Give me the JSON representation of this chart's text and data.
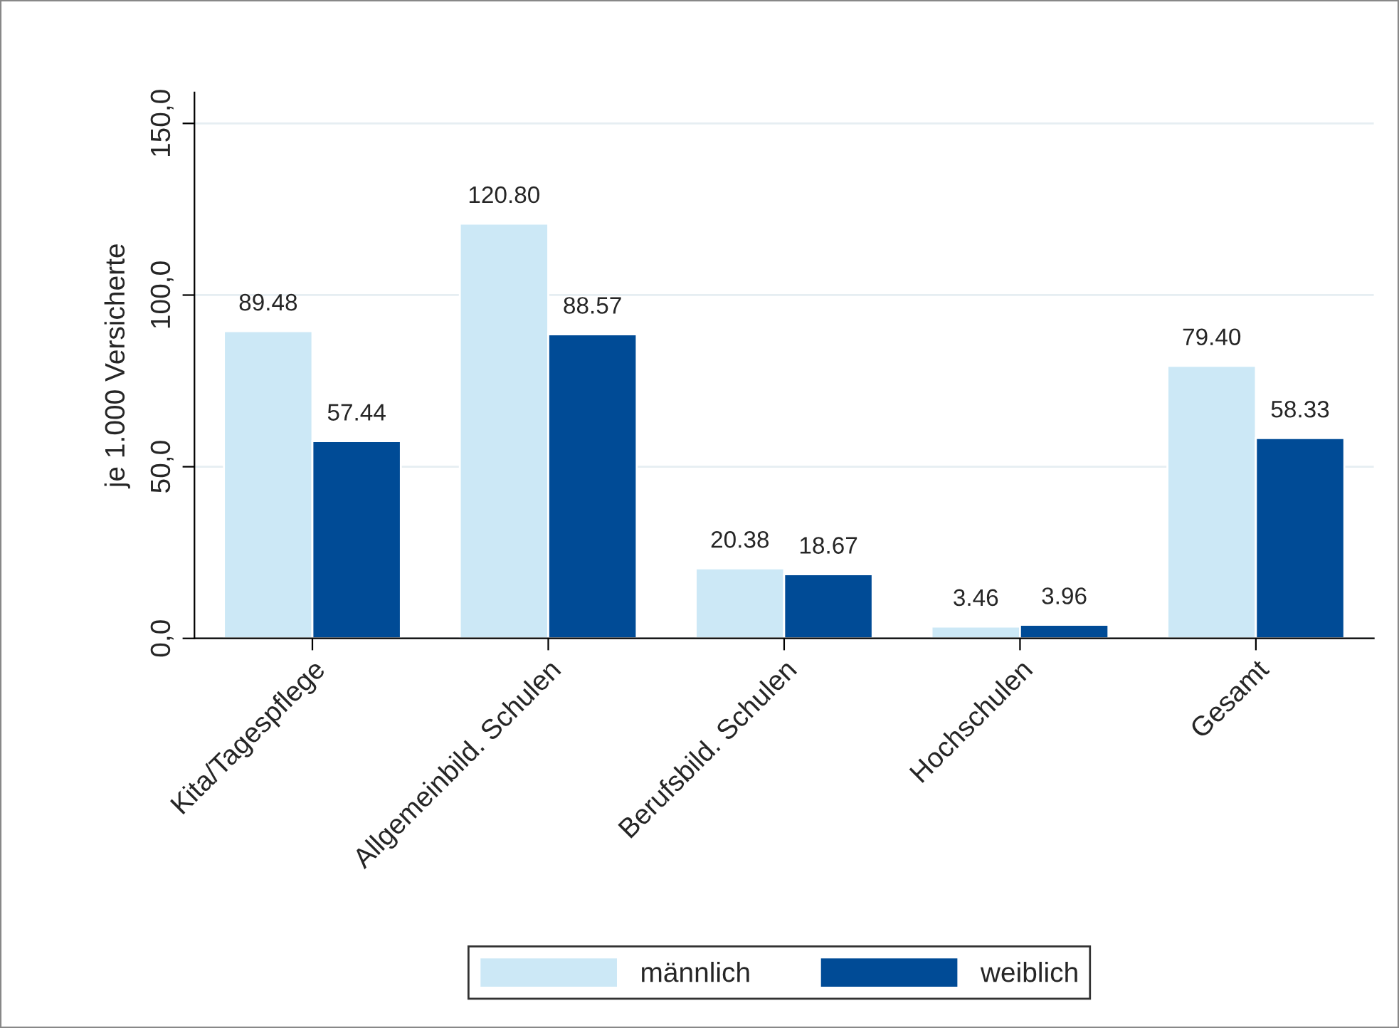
{
  "chart_data": {
    "type": "bar",
    "ylabel": "je 1.000 Versicherte",
    "categories": [
      "Kita/Tagespflege",
      "Allgemeinbild. Schulen",
      "Berufsbild. Schulen",
      "Hochschulen",
      "Gesamt"
    ],
    "series": [
      {
        "name": "männlich",
        "color": "#cce8f6",
        "values": [
          89.48,
          120.8,
          20.38,
          3.46,
          79.4
        ],
        "value_labels": [
          "89.48",
          "120.80",
          "20.38",
          "3.46",
          "79.40"
        ]
      },
      {
        "name": "weiblich",
        "color": "#004b96",
        "values": [
          57.44,
          88.57,
          18.67,
          3.96,
          58.33
        ],
        "value_labels": [
          "57.44",
          "88.57",
          "18.67",
          "3.96",
          "58.33"
        ]
      }
    ],
    "ylim": [
      0,
      159
    ],
    "yticks": [
      {
        "value": 0,
        "label": "0,0"
      },
      {
        "value": 50,
        "label": "50,0"
      },
      {
        "value": 100,
        "label": "100,0"
      },
      {
        "value": 150,
        "label": "150,0"
      }
    ],
    "grid": "y",
    "legend": "bottom"
  }
}
